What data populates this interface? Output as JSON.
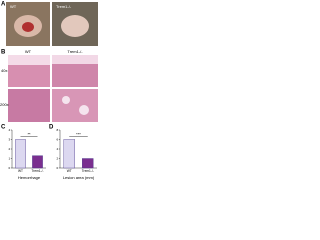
{
  "panels": {
    "a": {
      "label": "A",
      "captions": [
        "WT",
        "Trem1-/-"
      ]
    },
    "b": {
      "label": "B",
      "captions": [
        "WT",
        "Trem1-/-"
      ],
      "rows": [
        "40x",
        "200x"
      ]
    }
  },
  "chart_data": [
    {
      "type": "bar",
      "panel": "C",
      "xlabel": "Hemorrhage",
      "annotation": "**",
      "categories": [
        "WT",
        "Trem1-/-"
      ],
      "values": [
        3,
        1.3
      ],
      "colors": [
        "#dcd8f0",
        "#7a2f8f"
      ],
      "ylim": [
        0,
        4
      ],
      "yticks": [
        0,
        1,
        2,
        3,
        4
      ]
    },
    {
      "type": "bar",
      "panel": "D",
      "xlabel": "Lesion area (mm)",
      "annotation": "***",
      "categories": [
        "WT",
        "Trem1-/-"
      ],
      "values": [
        6,
        2
      ],
      "colors": [
        "#dcd8f0",
        "#7a2f8f"
      ],
      "ylim": [
        0,
        8
      ],
      "yticks": [
        0,
        2,
        4,
        6,
        8
      ]
    }
  ]
}
